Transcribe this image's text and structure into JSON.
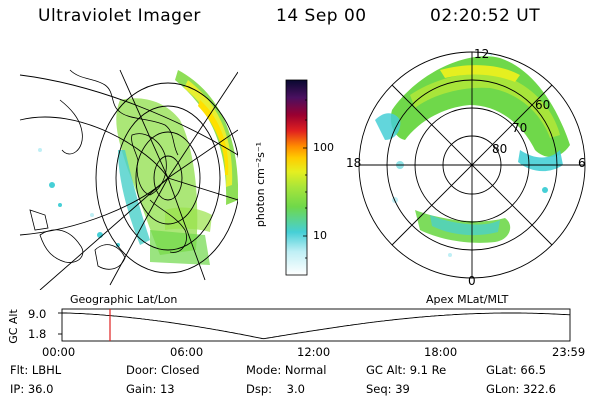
{
  "header": {
    "instrument": "Ultraviolet Imager",
    "date": "14 Sep 00",
    "time": "02:20:52 UT"
  },
  "colorbar": {
    "label": "photon cm⁻²s⁻¹",
    "ticks": [
      "100",
      "10"
    ]
  },
  "polar_plot": {
    "mlt_labels": {
      "top": "12",
      "left": "18",
      "right": "6",
      "bottom": "0"
    },
    "lat_labels": [
      "60",
      "70",
      "80"
    ]
  },
  "map_labels": {
    "left": "Geographic Lat/Lon",
    "right": "Apex MLat/MLT"
  },
  "altitude_plot": {
    "ylabel": "GC Alt",
    "y_ticks": [
      "9.0",
      "1.8"
    ],
    "x_ticks": [
      "00:00",
      "06:00",
      "12:00",
      "18:00",
      "23:59"
    ]
  },
  "info": {
    "row1": {
      "flt": "Flt: LBHL",
      "door": "Door: Closed",
      "mode": "Mode: Normal",
      "gcalt": "GC Alt: 9.1 Re",
      "glat": "GLat:  66.5"
    },
    "row2": {
      "ip": "IP: 36.0",
      "gain": "Gain: 13",
      "dsp": "Dsp:    3.0",
      "seq": "Seq: 39",
      "glon": "GLon: 322.6"
    }
  },
  "colors": {
    "marker": "#e02020",
    "auroral_bright": "#ffef00",
    "auroral_green": "#7ad83a",
    "auroral_teal": "#3fd0c8"
  }
}
